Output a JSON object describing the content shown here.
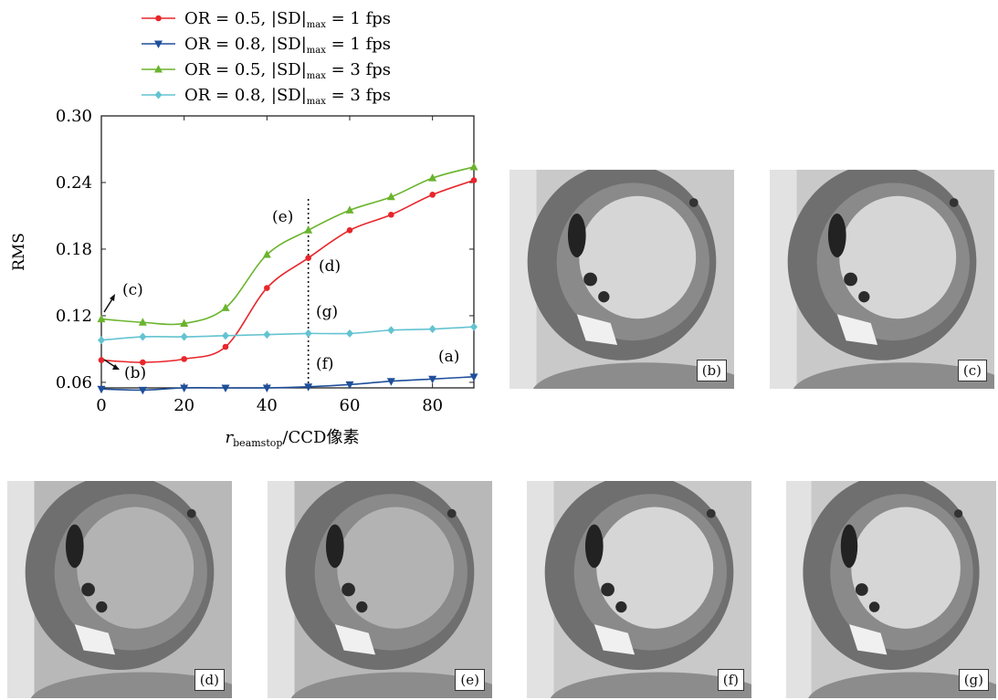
{
  "chart_data": {
    "type": "line",
    "xlabel_main": "r",
    "xlabel_sub": "beamstop",
    "xlabel_rest": "/CCD像素",
    "ylabel": "RMS",
    "xlim": [
      0,
      90
    ],
    "ylim": [
      0.055,
      0.3
    ],
    "xticks": [
      "0",
      "20",
      "40",
      "60",
      "80"
    ],
    "yticks": [
      "0.06",
      "0.12",
      "0.18",
      "0.24",
      "0.30"
    ],
    "legend_position": "top-left outside",
    "x": [
      0,
      10,
      20,
      30,
      40,
      50,
      60,
      70,
      80,
      90
    ],
    "series": [
      {
        "name": "OR = 0.5, |SD|max = 1 fps",
        "color": "#e8262b",
        "marker": "circle",
        "values": [
          0.08,
          0.078,
          0.081,
          0.092,
          0.145,
          0.172,
          0.197,
          0.211,
          0.229,
          0.242
        ]
      },
      {
        "name": "OR = 0.8, |SD|max = 1 fps",
        "color": "#1f4f9a",
        "marker": "triangle-down",
        "values": [
          0.054,
          0.053,
          0.055,
          0.055,
          0.055,
          0.056,
          0.058,
          0.061,
          0.063,
          0.065
        ]
      },
      {
        "name": "OR = 0.5, |SD|max = 3 fps",
        "color": "#6ab42d",
        "marker": "triangle-up",
        "values": [
          0.117,
          0.114,
          0.113,
          0.127,
          0.175,
          0.197,
          0.215,
          0.227,
          0.244,
          0.254
        ]
      },
      {
        "name": "OR = 0.8, |SD|max = 3 fps",
        "color": "#63c3d1",
        "marker": "diamond",
        "values": [
          0.098,
          0.101,
          0.101,
          0.102,
          0.103,
          0.104,
          0.104,
          0.107,
          0.108,
          0.11
        ]
      }
    ],
    "legend_items": [
      {
        "main": "OR = 0.5, |SD|",
        "sub": "max",
        "tail": " = 1 fps"
      },
      {
        "main": "OR = 0.8, |SD|",
        "sub": "max",
        "tail": " = 1 fps"
      },
      {
        "main": "OR = 0.5, |SD|",
        "sub": "max",
        "tail": " = 3 fps"
      },
      {
        "main": "OR = 0.8, |SD|",
        "sub": "max",
        "tail": " = 3 fps"
      }
    ],
    "annotations": {
      "a": "(a)",
      "b": "(b)",
      "c": "(c)",
      "d": "(d)",
      "e": "(e)",
      "f": "(f)",
      "g": "(g)"
    },
    "marker_line_x": 50
  },
  "panels": [
    {
      "label": "(b)"
    },
    {
      "label": "(c)"
    },
    {
      "label": "(d)"
    },
    {
      "label": "(e)"
    },
    {
      "label": "(f)"
    },
    {
      "label": "(g)"
    }
  ]
}
